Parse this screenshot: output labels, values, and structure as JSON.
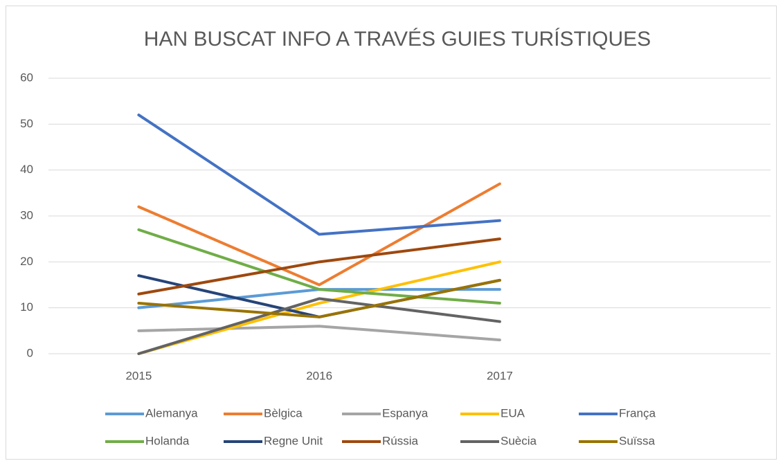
{
  "chart_data": {
    "type": "line",
    "title": "HAN BUSCAT INFO A TRAVÉS GUIES TURÍSTIQUES",
    "categories": [
      "2015",
      "2016",
      "2017",
      null
    ],
    "ylim": [
      0,
      60
    ],
    "yticks": [
      0,
      10,
      20,
      30,
      40,
      50,
      60
    ],
    "grid": true,
    "legend": "bottom",
    "series": [
      {
        "name": "Alemanya",
        "color": "#5b9bd5",
        "values": [
          10,
          14,
          14,
          null
        ]
      },
      {
        "name": "Bèlgica",
        "color": "#ed7d31",
        "values": [
          32,
          15,
          37,
          null
        ]
      },
      {
        "name": "Espanya",
        "color": "#a5a5a5",
        "values": [
          5,
          6,
          3,
          null
        ]
      },
      {
        "name": "EUA",
        "color": "#ffc000",
        "values": [
          0,
          11,
          20,
          null
        ]
      },
      {
        "name": "França",
        "color": "#4472c4",
        "values": [
          52,
          26,
          29,
          null
        ]
      },
      {
        "name": "Holanda",
        "color": "#70ad47",
        "values": [
          27,
          14,
          11,
          null
        ]
      },
      {
        "name": "Regne Unit",
        "color": "#264478",
        "values": [
          17,
          8,
          16,
          null
        ]
      },
      {
        "name": "Rússia",
        "color": "#9e480e",
        "values": [
          13,
          20,
          25,
          null
        ]
      },
      {
        "name": "Suècia",
        "color": "#636363",
        "values": [
          0,
          12,
          7,
          null
        ]
      },
      {
        "name": "Suïssa",
        "color": "#997300",
        "values": [
          11,
          8,
          16,
          null
        ]
      }
    ]
  }
}
